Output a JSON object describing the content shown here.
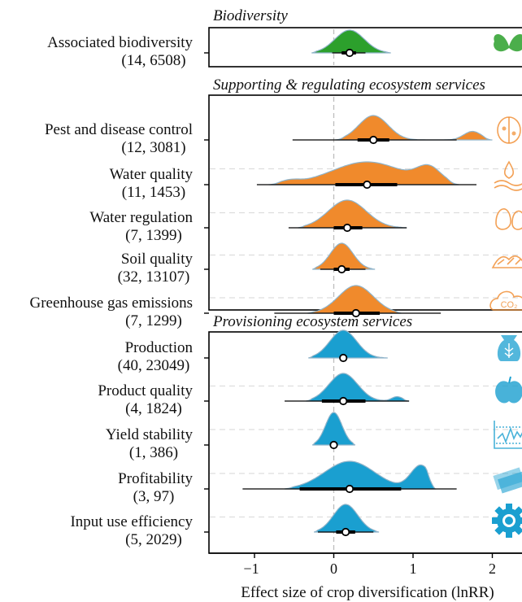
{
  "chart_data": {
    "type": "ridgeline",
    "xlabel": "Effect size of crop diversification (lnRR)",
    "xlim": [
      -1.5,
      2.35
    ],
    "xticks": [
      -1,
      0,
      1,
      2
    ],
    "reference_line_x": 0,
    "grid": false,
    "legend": "none",
    "panels": [
      {
        "title": "Biodiversity",
        "color": "#2ca02c",
        "icon": "butterfly-icon",
        "rows": [
          {
            "label": "Associated biodiversity",
            "counts": "(14, 6508)",
            "mean": 0.2,
            "ci95": [
              0.1,
              0.28
            ],
            "pi": [
              -0.02,
              0.4
            ],
            "density_range": [
              -0.28,
              0.72
            ]
          }
        ]
      },
      {
        "title": "Supporting & regulating ecosystem services",
        "color": "#f08a2c",
        "rows": [
          {
            "label": "Pest and disease control",
            "counts": "(12, 3081)",
            "mean": 0.5,
            "ci95": [
              0.3,
              0.7
            ],
            "pi": [
              -0.52,
              1.55
            ],
            "density_range": [
              0.02,
              2.0
            ],
            "icon": "ladybug-icon"
          },
          {
            "label": "Water quality",
            "counts": "(11, 1453)",
            "mean": 0.42,
            "ci95": [
              0.02,
              0.8
            ],
            "pi": [
              -0.97,
              1.8
            ],
            "density_range": [
              -0.82,
              1.58
            ],
            "icon": "water-drop-icon"
          },
          {
            "label": "Water regulation",
            "counts": "(7, 1399)",
            "mean": 0.17,
            "ci95": [
              0.0,
              0.36
            ],
            "pi": [
              -0.57,
              0.92
            ],
            "density_range": [
              -0.45,
              0.92
            ],
            "icon": "water-flow-icon"
          },
          {
            "label": "Soil quality",
            "counts": "(32, 13107)",
            "mean": 0.1,
            "ci95": [
              0.0,
              0.2
            ],
            "pi": [
              -0.17,
              0.4
            ],
            "density_range": [
              -0.27,
              0.52
            ],
            "icon": "soil-icon"
          },
          {
            "label": "Greenhouse gas emissions",
            "counts": "(7, 1299)",
            "mean": 0.28,
            "ci95": [
              0.0,
              0.58
            ],
            "pi": [
              -0.75,
              1.35
            ],
            "density_range": [
              -0.33,
              0.85
            ],
            "icon": "co2-cloud-icon"
          }
        ]
      },
      {
        "title": "Provisioning ecosystem services",
        "color": "#1a9fd0",
        "rows": [
          {
            "label": "Production",
            "counts": "(40, 23049)",
            "mean": 0.12,
            "ci95": [
              0.08,
              0.16
            ],
            "pi": [
              0.08,
              0.16
            ],
            "density_range": [
              -0.32,
              0.68
            ],
            "icon": "grain-sack-icon"
          },
          {
            "label": "Product quality",
            "counts": "(4, 1824)",
            "mean": 0.12,
            "ci95": [
              -0.15,
              0.4
            ],
            "pi": [
              -0.62,
              0.95
            ],
            "density_range": [
              -0.35,
              0.95
            ],
            "icon": "apple-icon"
          },
          {
            "label": "Yield stability",
            "counts": "(1, 386)",
            "mean": 0.0,
            "ci95": [
              -0.03,
              0.03
            ],
            "pi": [
              -0.03,
              0.03
            ],
            "density_range": [
              -0.27,
              0.27
            ],
            "icon": "stability-chart-icon"
          },
          {
            "label": "Profitability",
            "counts": "(3, 97)",
            "mean": 0.2,
            "ci95": [
              -0.43,
              0.85
            ],
            "pi": [
              -1.15,
              1.55
            ],
            "density_range": [
              -0.62,
              1.28
            ],
            "icon": "money-icon"
          },
          {
            "label": "Input use efficiency",
            "counts": "(5, 2029)",
            "mean": 0.15,
            "ci95": [
              0.03,
              0.27
            ],
            "pi": [
              -0.2,
              0.5
            ],
            "density_range": [
              -0.25,
              0.57
            ],
            "icon": "gear-icon"
          }
        ]
      }
    ]
  }
}
